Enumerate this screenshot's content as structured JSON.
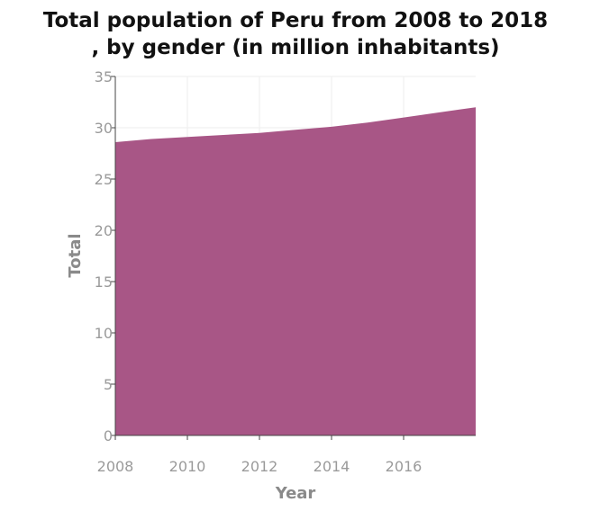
{
  "chart_data": {
    "type": "area",
    "title_lines": [
      "Total population of Peru from 2008 to 2018",
      ", by gender (in million inhabitants)"
    ],
    "xlabel": "Year",
    "ylabel": "Total",
    "x": [
      2008,
      2009,
      2010,
      2011,
      2012,
      2013,
      2014,
      2015,
      2016,
      2017,
      2018
    ],
    "series": [
      {
        "values": [
          28.6,
          28.9,
          29.1,
          29.3,
          29.5,
          29.8,
          30.1,
          30.5,
          31.0,
          31.5,
          32.0
        ]
      }
    ],
    "xlim": [
      2008,
      2018
    ],
    "ylim": [
      0,
      35
    ],
    "x_ticks": [
      2008,
      2010,
      2012,
      2014,
      2016
    ],
    "y_ticks": [
      0,
      5,
      10,
      15,
      20,
      25,
      30,
      35
    ],
    "grid": true,
    "fill_color": "#a85686",
    "grid_color": "#eeeeee"
  }
}
